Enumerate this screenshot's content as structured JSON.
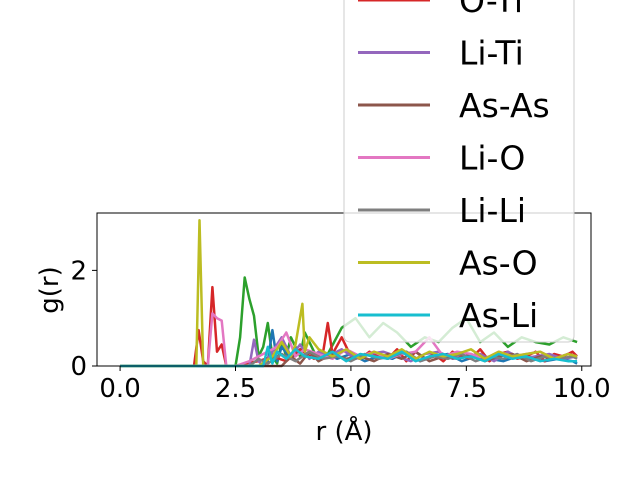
{
  "chart_data": {
    "type": "line",
    "title": "",
    "xlabel": "r (Å)",
    "ylabel": "g(r)",
    "xlim": [
      -0.5,
      10.2
    ],
    "ylim": [
      0,
      3.2
    ],
    "xticks": [
      "0.0",
      "2.5",
      "5.0",
      "7.5",
      "10.0"
    ],
    "yticks": [
      "0",
      "2"
    ],
    "legend_position": "upper-right",
    "series": [
      {
        "name": "O-Ti",
        "color": "#d62728",
        "x": [
          0.0,
          1.5,
          1.6,
          1.7,
          1.8,
          1.9,
          2.0,
          2.1,
          2.2,
          2.3,
          2.4,
          2.5,
          2.7,
          3.0,
          3.3,
          3.6,
          3.9,
          4.2,
          4.4,
          4.5,
          4.6,
          4.8,
          5.0,
          5.2,
          5.4,
          5.6,
          5.8,
          6.0,
          6.2,
          6.4,
          6.6,
          6.8,
          7.0,
          7.2,
          7.4,
          7.6,
          7.8,
          8.0,
          8.2,
          8.4,
          8.6,
          8.8,
          9.0,
          9.2,
          9.4,
          9.6,
          9.8,
          9.9
        ],
        "y": [
          0,
          0,
          0,
          0.75,
          0.1,
          0.0,
          1.65,
          0.3,
          0.45,
          0.0,
          0.0,
          0.0,
          0.05,
          0.1,
          0.2,
          0.1,
          0.35,
          0.15,
          0.3,
          0.9,
          0.25,
          0.6,
          0.2,
          0.15,
          0.3,
          0.2,
          0.15,
          0.35,
          0.1,
          0.3,
          0.15,
          0.25,
          0.1,
          0.3,
          0.2,
          0.15,
          0.35,
          0.1,
          0.25,
          0.3,
          0.15,
          0.2,
          0.3,
          0.1,
          0.25,
          0.2,
          0.3,
          0.2
        ]
      },
      {
        "name": "Li-Ti",
        "color": "#9467bd",
        "x": [
          0.0,
          2.7,
          2.8,
          2.9,
          3.0,
          3.1,
          3.3,
          3.5,
          3.7,
          3.9,
          4.1,
          4.3,
          4.5,
          4.8,
          5.1,
          5.4,
          5.7,
          6.0,
          6.3,
          6.6,
          6.9,
          7.2,
          7.5,
          7.8,
          8.1,
          8.4,
          8.7,
          9.0,
          9.3,
          9.6,
          9.9
        ],
        "y": [
          0,
          0,
          0.0,
          0.55,
          0.1,
          0.0,
          0.3,
          0.6,
          0.2,
          0.45,
          0.15,
          0.3,
          0.2,
          0.35,
          0.15,
          0.25,
          0.3,
          0.2,
          0.1,
          0.25,
          0.3,
          0.15,
          0.2,
          0.25,
          0.1,
          0.3,
          0.15,
          0.2,
          0.25,
          0.15,
          0.2
        ]
      },
      {
        "name": "As-As",
        "color": "#8c564b",
        "x": [
          0.0,
          3.5,
          3.7,
          3.9,
          4.1,
          4.3,
          4.6,
          4.9,
          5.2,
          5.5,
          5.8,
          6.1,
          6.4,
          6.7,
          7.0,
          7.3,
          7.6,
          7.9,
          8.2,
          8.5,
          8.8,
          9.1,
          9.4,
          9.7,
          9.9
        ],
        "y": [
          0,
          0,
          0.2,
          0.05,
          0.3,
          0.1,
          0.25,
          0.15,
          0.2,
          0.1,
          0.25,
          0.15,
          0.3,
          0.1,
          0.2,
          0.15,
          0.25,
          0.1,
          0.2,
          0.25,
          0.1,
          0.2,
          0.15,
          0.25,
          0.2
        ]
      },
      {
        "name": "Li-O",
        "color": "#e377c2",
        "x": [
          0.0,
          1.8,
          1.9,
          2.0,
          2.1,
          2.2,
          2.3,
          2.5,
          2.8,
          3.1,
          3.4,
          3.6,
          3.8,
          4.0,
          4.3,
          4.6,
          4.9,
          5.2,
          5.5,
          5.8,
          6.1,
          6.4,
          6.7,
          7.0,
          7.3,
          7.6,
          7.9,
          8.2,
          8.5,
          8.8,
          9.1,
          9.4,
          9.7,
          9.9
        ],
        "y": [
          0,
          0,
          0.0,
          1.1,
          1.0,
          0.95,
          0.0,
          0.0,
          0.1,
          0.25,
          0.4,
          0.7,
          0.2,
          0.35,
          0.25,
          0.15,
          0.35,
          0.2,
          0.3,
          0.15,
          0.25,
          0.3,
          0.6,
          0.2,
          0.3,
          0.25,
          0.15,
          0.3,
          0.2,
          0.25,
          0.3,
          0.15,
          0.25,
          0.2
        ]
      },
      {
        "name": "Li-Li",
        "color": "#7f7f7f",
        "x": [
          0.0,
          2.8,
          3.0,
          3.2,
          3.5,
          3.8,
          4.1,
          4.4,
          4.7,
          5.0,
          5.3,
          5.6,
          5.9,
          6.2,
          6.5,
          6.8,
          7.1,
          7.4,
          7.7,
          8.0,
          8.3,
          8.6,
          8.9,
          9.2,
          9.5,
          9.8,
          9.9
        ],
        "y": [
          0,
          0,
          0.15,
          0.05,
          0.25,
          0.1,
          0.3,
          0.15,
          0.2,
          0.1,
          0.25,
          0.15,
          0.2,
          0.3,
          0.1,
          0.2,
          0.15,
          0.25,
          0.1,
          0.2,
          0.15,
          0.25,
          0.1,
          0.2,
          0.15,
          0.2,
          0.15
        ]
      },
      {
        "name": "As-O",
        "color": "#bcbd22",
        "x": [
          0.0,
          1.6,
          1.65,
          1.72,
          1.8,
          1.9,
          2.2,
          2.6,
          3.0,
          3.3,
          3.5,
          3.7,
          3.8,
          3.95,
          4.0,
          4.1,
          4.3,
          4.6,
          4.9,
          5.2,
          5.5,
          5.8,
          6.1,
          6.4,
          6.7,
          7.0,
          7.3,
          7.6,
          7.9,
          8.2,
          8.5,
          8.8,
          9.1,
          9.4,
          9.7,
          9.9
        ],
        "y": [
          0,
          0,
          0.0,
          3.05,
          0.0,
          0.0,
          0.0,
          0.0,
          0.0,
          0.2,
          0.5,
          0.2,
          0.45,
          1.3,
          0.3,
          0.6,
          0.35,
          0.2,
          0.35,
          0.15,
          0.3,
          0.2,
          0.35,
          0.15,
          0.3,
          0.2,
          0.25,
          0.35,
          0.15,
          0.3,
          0.2,
          0.25,
          0.3,
          0.15,
          0.25,
          0.2
        ]
      },
      {
        "name": "As-Li",
        "color": "#17becf",
        "x": [
          0.0,
          3.1,
          3.2,
          3.3,
          3.4,
          3.6,
          3.8,
          4.0,
          4.3,
          4.6,
          4.9,
          5.2,
          5.5,
          5.8,
          6.1,
          6.4,
          6.7,
          7.0,
          7.3,
          7.6,
          7.9,
          8.2,
          8.5,
          8.8,
          9.1,
          9.4,
          9.7,
          9.9
        ],
        "y": [
          0,
          0,
          0.4,
          0.05,
          0.3,
          0.15,
          0.35,
          0.2,
          0.15,
          0.3,
          0.1,
          0.25,
          0.2,
          0.15,
          0.3,
          0.1,
          0.2,
          0.25,
          0.15,
          0.2,
          0.1,
          0.25,
          0.15,
          0.2,
          0.1,
          0.15,
          0.1,
          0.1
        ]
      },
      {
        "name": "",
        "color": "#2ca02c",
        "x": [
          0.0,
          2.5,
          2.6,
          2.7,
          2.8,
          2.9,
          3.0,
          3.1,
          3.2,
          3.3,
          3.4,
          3.5,
          3.6,
          3.7,
          3.8,
          3.9,
          4.0,
          4.1,
          4.2,
          4.3,
          4.5,
          4.8,
          5.1,
          5.4,
          5.7,
          6.0,
          6.3,
          6.6,
          6.9,
          7.2,
          7.5,
          7.8,
          8.1,
          8.4,
          8.7,
          9.0,
          9.3,
          9.6,
          9.9
        ],
        "y": [
          0,
          0,
          0.6,
          1.85,
          1.4,
          1.05,
          0.2,
          0.4,
          0.9,
          0.2,
          0.05,
          0.5,
          0.2,
          0.6,
          0.4,
          0.2,
          0.7,
          0.5,
          0.3,
          0.1,
          0.25,
          0.8,
          1.0,
          0.6,
          0.9,
          0.7,
          0.4,
          0.6,
          0.5,
          0.8,
          1.0,
          0.5,
          0.7,
          0.4,
          0.6,
          0.5,
          0.45,
          0.6,
          0.5
        ]
      },
      {
        "name": "",
        "color": "#1f77b4",
        "x": [
          0.0,
          3.0,
          3.1,
          3.2,
          3.3,
          3.4,
          3.5,
          3.7,
          3.9,
          4.1,
          4.4,
          4.7,
          5.0,
          5.3,
          5.6,
          5.9,
          6.2,
          6.5,
          6.8,
          7.1,
          7.4,
          7.7,
          8.0,
          8.3,
          8.6,
          8.9,
          9.2,
          9.5,
          9.8,
          9.9
        ],
        "y": [
          0,
          0,
          0.0,
          0.1,
          0.75,
          0.1,
          0.4,
          0.15,
          0.35,
          0.2,
          0.3,
          0.15,
          0.25,
          0.1,
          0.2,
          0.15,
          0.3,
          0.1,
          0.2,
          0.25,
          0.1,
          0.2,
          0.15,
          0.1,
          0.2,
          0.15,
          0.1,
          0.15,
          0.1,
          0.05
        ]
      }
    ]
  }
}
